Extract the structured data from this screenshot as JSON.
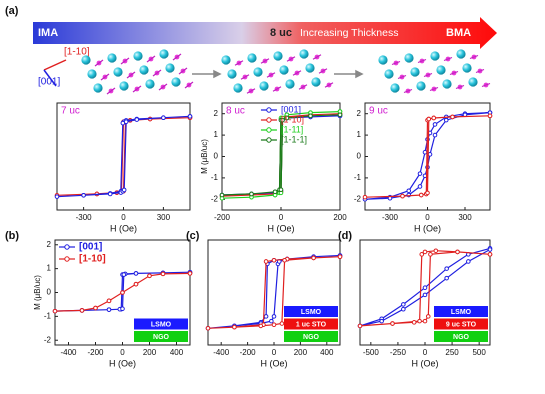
{
  "header": {
    "panel_label": "(a)",
    "bar": {
      "left": "IMA",
      "mid": "8 uc",
      "text": "Increasing Thickness",
      "right": "BMA"
    },
    "axis_red": "[1-10]",
    "axis_blue": "[001]"
  },
  "chart_data": [
    {
      "type": "line",
      "annotation": "7 uc",
      "xlabel": "H (Oe)",
      "xlim": [
        -500,
        500
      ],
      "xticks": [
        -300,
        0,
        300
      ],
      "ylim": [
        -2,
        2
      ],
      "series": [
        {
          "color": "#e02020",
          "x": [
            500,
            200,
            50,
            0,
            -15,
            -50,
            -200,
            -500,
            -200,
            -50,
            0,
            15,
            50,
            200,
            500
          ],
          "values": [
            1.45,
            1.4,
            1.35,
            1.3,
            -1.3,
            -1.35,
            -1.4,
            -1.45,
            -1.4,
            -1.35,
            -1.3,
            1.3,
            1.35,
            1.4,
            1.45
          ]
        },
        {
          "color": "#2020e0",
          "x": [
            500,
            300,
            100,
            20,
            5,
            -5,
            -20,
            -100,
            -300,
            -500,
            -300,
            -100,
            -20,
            -5,
            5,
            20,
            100,
            300,
            500
          ],
          "values": [
            1.5,
            1.45,
            1.4,
            1.35,
            1.3,
            1.25,
            -1.3,
            -1.38,
            -1.45,
            -1.5,
            -1.45,
            -1.4,
            -1.35,
            -1.3,
            -1.25,
            1.3,
            1.38,
            1.45,
            1.5
          ]
        }
      ]
    },
    {
      "type": "line",
      "annotation": "8 uc",
      "xlabel": "H (Oe)",
      "ylabel": "M (μB/uc)",
      "xlim": [
        -200,
        200
      ],
      "xticks": [
        -200,
        0,
        200
      ],
      "ylim": [
        -2.5,
        2.5
      ],
      "yticks": [
        -2,
        -1,
        0,
        1,
        2
      ],
      "legend": "upper center",
      "series": [
        {
          "name": "[001]",
          "color": "#2020e0",
          "x": [
            200,
            100,
            20,
            0,
            -5,
            -20,
            -100,
            -200,
            -100,
            -20,
            0,
            5,
            20,
            100,
            200
          ],
          "values": [
            1.9,
            1.85,
            1.8,
            1.7,
            -1.6,
            -1.7,
            -1.75,
            -1.8,
            -1.75,
            -1.7,
            -1.6,
            1.7,
            1.8,
            1.85,
            1.9
          ]
        },
        {
          "name": "[1-10]",
          "color": "#e02020",
          "x": [
            200,
            100,
            20,
            0,
            -5,
            -20,
            -100,
            -200,
            -100,
            -20,
            0,
            5,
            20,
            100,
            200
          ],
          "values": [
            2.0,
            1.95,
            1.85,
            1.75,
            -1.65,
            -1.75,
            -1.8,
            -1.85,
            -1.8,
            -1.75,
            -1.65,
            1.75,
            1.85,
            1.95,
            2.0
          ]
        },
        {
          "name": "[1-11]",
          "color": "#20d020",
          "x": [
            200,
            100,
            20,
            0,
            -5,
            -20,
            -100,
            -200,
            -100,
            -20,
            0,
            5,
            20,
            100,
            200
          ],
          "values": [
            2.1,
            2.05,
            1.95,
            1.8,
            -1.7,
            -1.8,
            -1.9,
            -1.95,
            -1.9,
            -1.8,
            -1.7,
            1.8,
            1.95,
            2.05,
            2.1
          ]
        },
        {
          "name": "[1-1-1]",
          "color": "#1a7a1a",
          "x": [
            200,
            100,
            20,
            0,
            -5,
            -20,
            -100,
            -200,
            -100,
            -20,
            0,
            5,
            20,
            100,
            200
          ],
          "values": [
            1.95,
            1.9,
            1.8,
            1.7,
            -1.55,
            -1.65,
            -1.75,
            -1.8,
            -1.75,
            -1.65,
            -1.55,
            1.7,
            1.8,
            1.9,
            1.95
          ]
        }
      ]
    },
    {
      "type": "line",
      "annotation": "9 uc",
      "xlabel": "H (Oe)",
      "xlim": [
        -500,
        500
      ],
      "xticks": [
        -300,
        0,
        300
      ],
      "ylim": [
        -2.5,
        2.5
      ],
      "yticks": [
        -2,
        -1,
        0,
        1,
        2
      ],
      "series": [
        {
          "color": "#2020e0",
          "x": [
            500,
            300,
            150,
            60,
            20,
            0,
            -20,
            -60,
            -150,
            -300,
            -500,
            -300,
            -150,
            -60,
            -20,
            0,
            20,
            60,
            150,
            300,
            500
          ],
          "values": [
            2.05,
            2.0,
            1.85,
            1.5,
            1.1,
            0.8,
            0.2,
            -0.8,
            -1.6,
            -1.9,
            -2.0,
            -1.95,
            -1.8,
            -1.4,
            -0.9,
            -0.5,
            0.1,
            1.0,
            1.7,
            1.95,
            2.05
          ]
        },
        {
          "color": "#e02020",
          "x": [
            500,
            200,
            50,
            10,
            0,
            -10,
            -50,
            -200,
            -500,
            -200,
            -50,
            -10,
            0,
            10,
            50,
            200,
            500
          ],
          "values": [
            1.9,
            1.85,
            1.8,
            1.75,
            1.7,
            -1.75,
            -1.8,
            -1.85,
            -1.9,
            -1.85,
            -1.8,
            -1.75,
            -1.7,
            1.75,
            1.8,
            1.85,
            1.9
          ]
        }
      ]
    },
    {
      "type": "line",
      "panel": "(b)",
      "xlabel": "H (Oe)",
      "ylabel": "M (μB/uc)",
      "xlim": [
        -500,
        500
      ],
      "xticks": [
        -400,
        -200,
        0,
        200,
        400
      ],
      "ylim": [
        -2.2,
        2.2
      ],
      "yticks": [
        -2,
        -1,
        0,
        1,
        2
      ],
      "legend": "upper left",
      "stack": [
        {
          "label": "LSMO",
          "color": "#1a1aff"
        },
        {
          "label": "NGO",
          "color": "#10d010"
        }
      ],
      "series": [
        {
          "name": "[001]",
          "color": "#2020e0",
          "x": [
            500,
            300,
            100,
            20,
            0,
            -10,
            -100,
            -300,
            -500,
            -300,
            -100,
            -20,
            0,
            10,
            100,
            300,
            500
          ],
          "values": [
            0.85,
            0.82,
            0.8,
            0.78,
            0.75,
            -0.7,
            -0.72,
            -0.75,
            -0.78,
            -0.75,
            -0.72,
            -0.7,
            -0.68,
            0.75,
            0.8,
            0.82,
            0.85
          ]
        },
        {
          "name": "[1-10]",
          "color": "#e02020",
          "x": [
            500,
            300,
            200,
            100,
            0,
            -100,
            -200,
            -300,
            -500,
            -300,
            -200,
            -100,
            0,
            100,
            200,
            300,
            500
          ],
          "values": [
            0.8,
            0.78,
            0.7,
            0.35,
            0.0,
            -0.35,
            -0.65,
            -0.75,
            -0.78,
            -0.75,
            -0.65,
            -0.35,
            0.0,
            0.35,
            0.7,
            0.78,
            0.8
          ]
        }
      ]
    },
    {
      "type": "line",
      "panel": "(c)",
      "xlabel": "H (Oe)",
      "xlim": [
        -500,
        500
      ],
      "xticks": [
        -400,
        -200,
        0,
        200,
        400
      ],
      "ylim": [
        -2.2,
        2.2
      ],
      "stack": [
        {
          "label": "LSMO",
          "color": "#1a1aff"
        },
        {
          "label": "1 uc STO",
          "color": "#ee1010"
        },
        {
          "label": "NGO",
          "color": "#10d010"
        }
      ],
      "series": [
        {
          "color": "#2020e0",
          "x": [
            500,
            300,
            100,
            0,
            -50,
            -60,
            -100,
            -300,
            -500,
            -300,
            -100,
            -20,
            0,
            30,
            40,
            100,
            300,
            500
          ],
          "values": [
            1.55,
            1.5,
            1.4,
            1.35,
            1.2,
            -1.0,
            -1.25,
            -1.4,
            -1.5,
            -1.4,
            -1.3,
            -1.2,
            -1.0,
            1.2,
            1.3,
            1.4,
            1.5,
            1.55
          ]
        },
        {
          "color": "#e02020",
          "x": [
            500,
            300,
            100,
            0,
            -60,
            -80,
            -300,
            -500,
            -300,
            -100,
            0,
            60,
            80,
            300,
            500
          ],
          "values": [
            1.5,
            1.45,
            1.4,
            1.35,
            1.3,
            -1.35,
            -1.45,
            -1.5,
            -1.45,
            -1.4,
            -1.35,
            -1.3,
            1.35,
            1.45,
            1.5
          ]
        }
      ]
    },
    {
      "type": "line",
      "panel": "(d)",
      "xlabel": "H (Oe)",
      "xlim": [
        -600,
        600
      ],
      "xticks": [
        -500,
        -250,
        0,
        250,
        500
      ],
      "ylim": [
        -2.2,
        2.2
      ],
      "stack": [
        {
          "label": "LSMO",
          "color": "#1a1aff"
        },
        {
          "label": "9 uc STO",
          "color": "#ee1010"
        },
        {
          "label": "NGO",
          "color": "#10d010"
        }
      ],
      "series": [
        {
          "color": "#2020e0",
          "x": [
            600,
            400,
            200,
            0,
            -200,
            -400,
            -600,
            -400,
            -200,
            0,
            200,
            400,
            600
          ],
          "values": [
            1.85,
            1.6,
            1.0,
            0.2,
            -0.5,
            -1.1,
            -1.4,
            -1.2,
            -0.7,
            -0.1,
            0.6,
            1.3,
            1.8
          ]
        },
        {
          "color": "#e02020",
          "x": [
            600,
            300,
            100,
            0,
            -30,
            -50,
            -300,
            -600,
            -300,
            -100,
            0,
            30,
            50,
            300,
            600
          ],
          "values": [
            1.6,
            1.7,
            1.75,
            1.7,
            1.6,
            -1.2,
            -1.3,
            -1.4,
            -1.3,
            -1.25,
            -1.2,
            -1.0,
            1.6,
            1.7,
            1.6
          ]
        }
      ]
    }
  ]
}
